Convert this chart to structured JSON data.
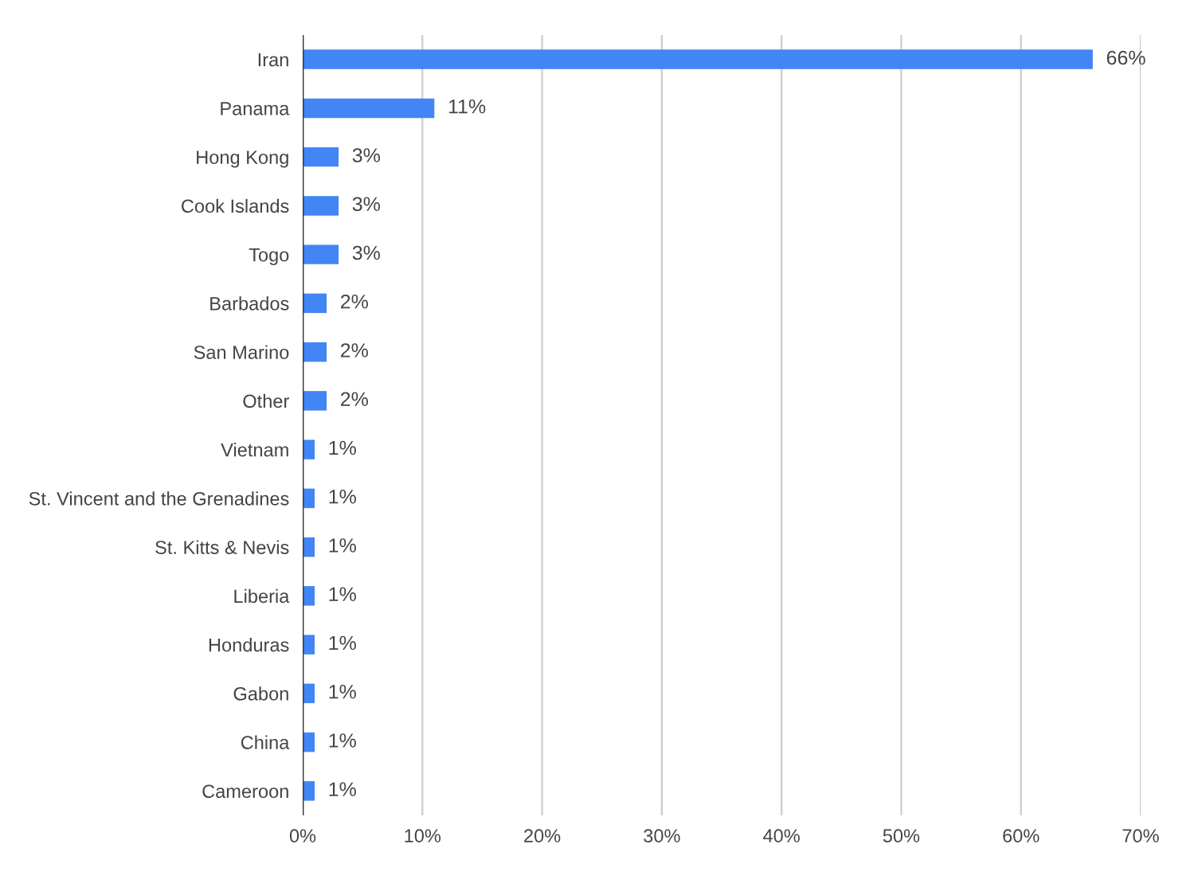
{
  "chart_data": {
    "type": "bar",
    "orientation": "horizontal",
    "categories": [
      "Iran",
      "Panama",
      "Hong Kong",
      "Cook Islands",
      "Togo",
      "Barbados",
      "San Marino",
      "Other",
      "Vietnam",
      "St. Vincent and the Grenadines",
      "St. Kitts & Nevis",
      "Liberia",
      "Honduras",
      "Gabon",
      "China",
      "Cameroon"
    ],
    "values": [
      66,
      11,
      3,
      3,
      3,
      2,
      2,
      2,
      1,
      1,
      1,
      1,
      1,
      1,
      1,
      1
    ],
    "value_labels": [
      "66%",
      "11%",
      "3%",
      "3%",
      "3%",
      "2%",
      "2%",
      "2%",
      "1%",
      "1%",
      "1%",
      "1%",
      "1%",
      "1%",
      "1%",
      "1%"
    ],
    "color": "#4285f4",
    "xlim": [
      0,
      70
    ],
    "xticks": [
      {
        "value": 0,
        "label": "0%"
      },
      {
        "value": 10,
        "label": "10%"
      },
      {
        "value": 20,
        "label": "20%"
      },
      {
        "value": 30,
        "label": "30%"
      },
      {
        "value": 40,
        "label": "40%"
      },
      {
        "value": 50,
        "label": "50%"
      },
      {
        "value": 60,
        "label": "60%"
      },
      {
        "value": 70,
        "label": "70%"
      }
    ],
    "grid": "x"
  }
}
